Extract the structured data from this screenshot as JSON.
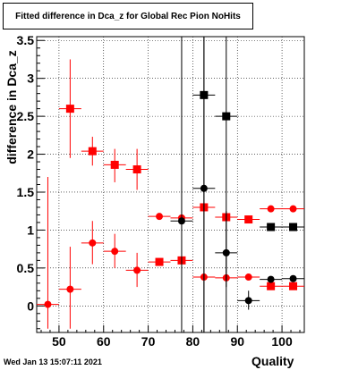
{
  "title": "Fitted difference in Dca_z for Global Rec Pion NoHits",
  "footer": "Wed Jan 13 15:07:11 2021",
  "chart_data": {
    "type": "scatter",
    "xlabel": "Quality",
    "ylabel": "difference in Dca_z",
    "xlim": [
      45,
      105
    ],
    "ylim": [
      -0.35,
      3.55
    ],
    "x_ticks": [
      50,
      60,
      70,
      80,
      90,
      100
    ],
    "y_ticks": [
      0,
      0.5,
      1,
      1.5,
      2,
      2.5,
      3,
      3.5
    ],
    "grid": true,
    "series": [
      {
        "marker": "square",
        "color": "#ff0000",
        "points": [
          {
            "x": 52.5,
            "y": 2.6,
            "xerr": 2.5,
            "ylo": 1.95,
            "yhi": 3.25
          },
          {
            "x": 57.5,
            "y": 2.04,
            "xerr": 2.5,
            "ylo": 1.85,
            "yhi": 2.23
          },
          {
            "x": 62.5,
            "y": 1.86,
            "xerr": 2.5,
            "ylo": 1.63,
            "yhi": 2.07
          },
          {
            "x": 67.5,
            "y": 1.8,
            "xerr": 2.5,
            "ylo": 1.53,
            "yhi": 2.07
          },
          {
            "x": 72.5,
            "y": 0.58,
            "xerr": 2.5,
            "ylo": 0.53,
            "yhi": 0.63
          },
          {
            "x": 77.5,
            "y": 0.6,
            "xerr": 2.5,
            "ylo": 0.55,
            "yhi": 0.65
          },
          {
            "x": 82.5,
            "y": 1.3,
            "xerr": 2.5,
            "ylo": 1.25,
            "yhi": 1.35
          },
          {
            "x": 87.5,
            "y": 1.17,
            "xerr": 2.5,
            "ylo": 1.12,
            "yhi": 1.22
          },
          {
            "x": 92.5,
            "y": 1.14,
            "xerr": 2.5,
            "ylo": 1.09,
            "yhi": 1.19
          },
          {
            "x": 97.5,
            "y": 0.26,
            "xerr": 2.5,
            "ylo": 0.22,
            "yhi": 0.3
          },
          {
            "x": 102.5,
            "y": 0.26,
            "xerr": 2.5,
            "ylo": 0.22,
            "yhi": 0.3
          }
        ]
      },
      {
        "marker": "circle",
        "color": "#ff0000",
        "points": [
          {
            "x": 47.5,
            "y": 0.02,
            "xerr": 2.5,
            "ylo": -0.3,
            "yhi": 1.7
          },
          {
            "x": 52.5,
            "y": 0.22,
            "xerr": 2.5,
            "ylo": -0.3,
            "yhi": 0.78
          },
          {
            "x": 57.5,
            "y": 0.83,
            "xerr": 2.5,
            "ylo": 0.55,
            "yhi": 1.12
          },
          {
            "x": 62.5,
            "y": 0.72,
            "xerr": 2.5,
            "ylo": 0.5,
            "yhi": 0.95
          },
          {
            "x": 67.5,
            "y": 0.47,
            "xerr": 2.5,
            "ylo": 0.25,
            "yhi": 0.7
          },
          {
            "x": 72.5,
            "y": 1.18,
            "xerr": 2.5,
            "ylo": 1.14,
            "yhi": 1.22
          },
          {
            "x": 77.5,
            "y": 1.16,
            "xerr": 2.5,
            "ylo": 1.12,
            "yhi": 1.2
          },
          {
            "x": 82.5,
            "y": 0.38,
            "xerr": 2.5,
            "ylo": 0.34,
            "yhi": 0.42
          },
          {
            "x": 87.5,
            "y": 0.37,
            "xerr": 2.5,
            "ylo": 0.33,
            "yhi": 0.41
          },
          {
            "x": 92.5,
            "y": 0.38,
            "xerr": 2.5,
            "ylo": 0.34,
            "yhi": 0.42
          },
          {
            "x": 97.5,
            "y": 1.28,
            "xerr": 2.5,
            "ylo": 1.24,
            "yhi": 1.32
          },
          {
            "x": 102.5,
            "y": 1.28,
            "xerr": 2.5,
            "ylo": 1.24,
            "yhi": 1.32
          }
        ]
      },
      {
        "marker": "square",
        "color": "#000000",
        "points": [
          {
            "x": 82.5,
            "y": 2.78,
            "xerr": 2.5,
            "ylo": -0.35,
            "yhi": 3.55
          },
          {
            "x": 87.5,
            "y": 2.5,
            "xerr": 2.5,
            "ylo": 0.25,
            "yhi": 3.55
          },
          {
            "x": 97.5,
            "y": 1.04,
            "xerr": 2.5,
            "ylo": 1.01,
            "yhi": 1.07
          },
          {
            "x": 102.5,
            "y": 1.04,
            "xerr": 2.5,
            "ylo": 1.01,
            "yhi": 1.07
          }
        ]
      },
      {
        "marker": "circle",
        "color": "#000000",
        "points": [
          {
            "x": 77.5,
            "y": 1.12,
            "xerr": 2.5,
            "ylo": -0.35,
            "yhi": 3.55
          },
          {
            "x": 82.5,
            "y": 1.55,
            "xerr": 2.5,
            "ylo": -0.35,
            "yhi": 3.55
          },
          {
            "x": 87.5,
            "y": 0.7,
            "xerr": 2.5,
            "ylo": -0.35,
            "yhi": 1.25
          },
          {
            "x": 92.5,
            "y": 0.07,
            "xerr": 2.5,
            "ylo": -0.05,
            "yhi": 0.2
          },
          {
            "x": 97.5,
            "y": 0.35,
            "xerr": 2.5,
            "ylo": 0.31,
            "yhi": 0.39
          },
          {
            "x": 102.5,
            "y": 0.36,
            "xerr": 2.5,
            "ylo": 0.32,
            "yhi": 0.4
          }
        ]
      }
    ]
  }
}
